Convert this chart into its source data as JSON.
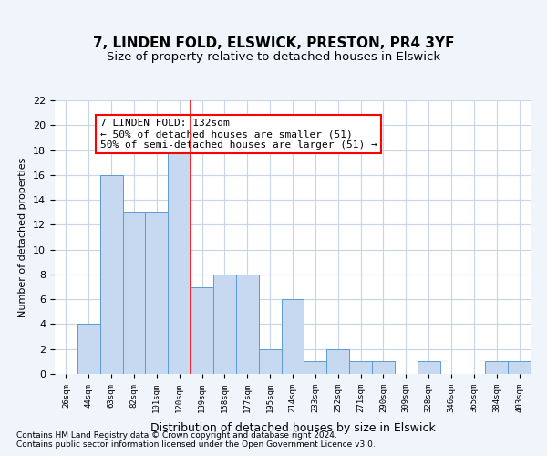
{
  "title1": "7, LINDEN FOLD, ELSWICK, PRESTON, PR4 3YF",
  "title2": "Size of property relative to detached houses in Elswick",
  "xlabel": "Distribution of detached houses by size in Elswick",
  "ylabel": "Number of detached properties",
  "categories": [
    "26sqm",
    "44sqm",
    "63sqm",
    "82sqm",
    "101sqm",
    "120sqm",
    "139sqm",
    "158sqm",
    "177sqm",
    "195sqm",
    "214sqm",
    "233sqm",
    "252sqm",
    "271sqm",
    "290sqm",
    "309sqm",
    "328sqm",
    "346sqm",
    "365sqm",
    "384sqm",
    "403sqm"
  ],
  "values": [
    0,
    4,
    16,
    13,
    13,
    18,
    7,
    8,
    8,
    2,
    6,
    1,
    2,
    1,
    1,
    0,
    1,
    0,
    0,
    1,
    1
  ],
  "bar_color": "#c6d9f1",
  "bar_edge_color": "#5b9bd5",
  "ref_line_x": 5.5,
  "ref_line_color": "red",
  "annotation_text": "7 LINDEN FOLD: 132sqm\n← 50% of detached houses are smaller (51)\n50% of semi-detached houses are larger (51) →",
  "annotation_box_color": "white",
  "annotation_box_edge_color": "red",
  "ylim": [
    0,
    22
  ],
  "yticks": [
    0,
    2,
    4,
    6,
    8,
    10,
    12,
    14,
    16,
    18,
    20,
    22
  ],
  "footnote1": "Contains HM Land Registry data © Crown copyright and database right 2024.",
  "footnote2": "Contains public sector information licensed under the Open Government Licence v3.0.",
  "bg_color": "#f0f4fb",
  "plot_bg_color": "white",
  "grid_color": "#c8d4e8"
}
